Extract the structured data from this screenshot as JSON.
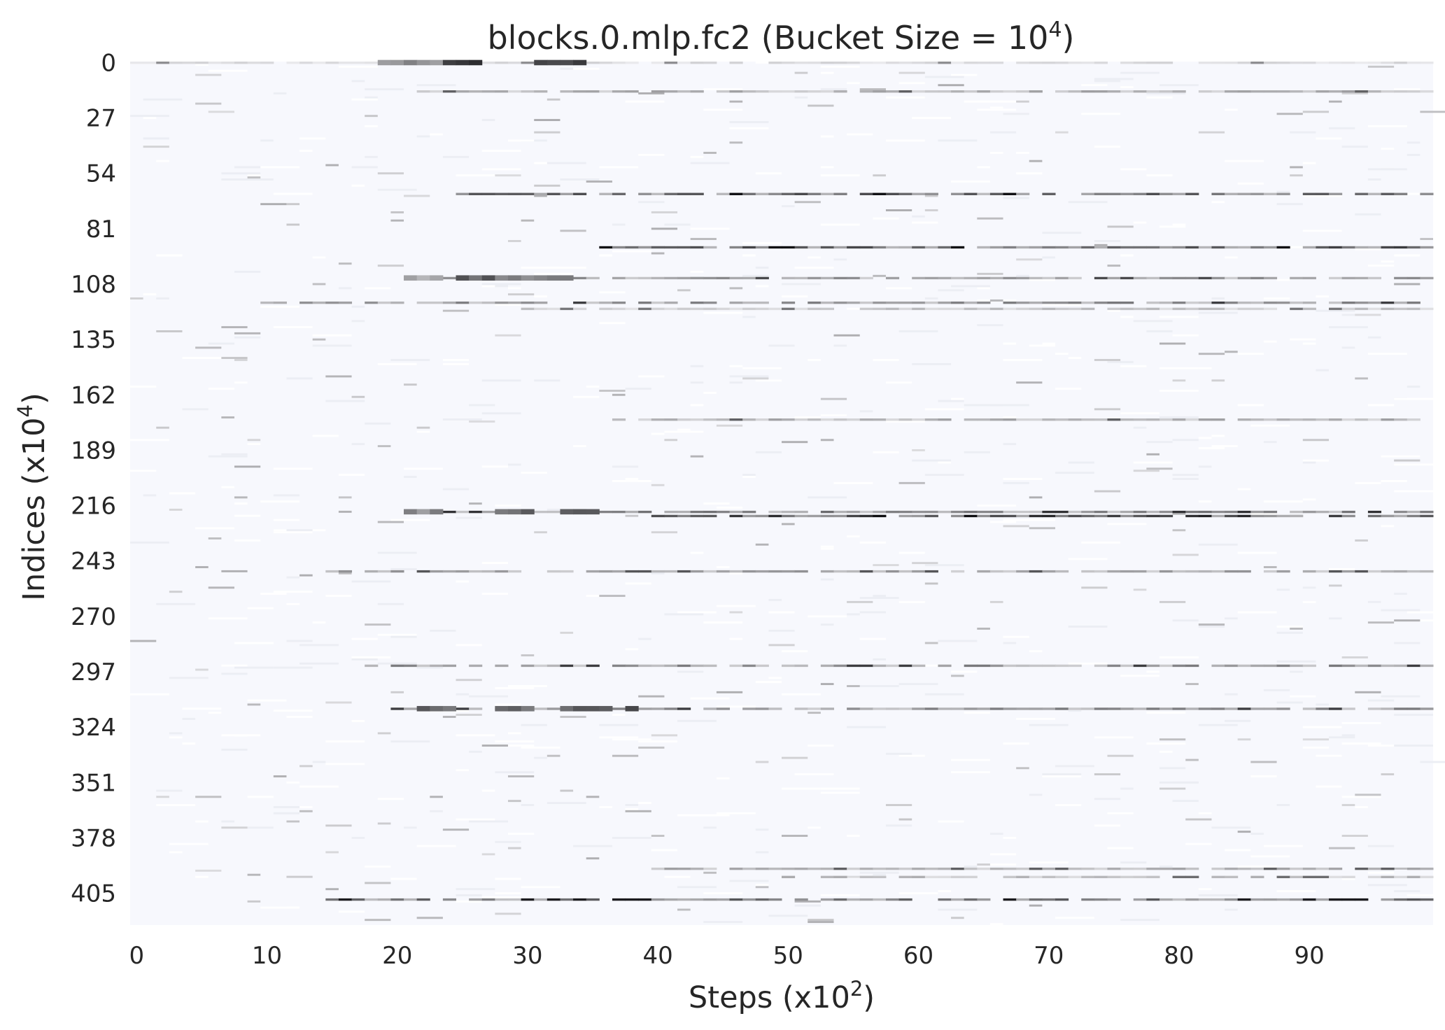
{
  "chart_data": {
    "type": "heatmap",
    "title": "blocks.0.mlp.fc2 (Bucket Size = 10",
    "title_exponent": "4",
    "title_suffix": ")",
    "xlabel": "Steps (x10",
    "xlabel_exponent": "2",
    "xlabel_suffix": ")",
    "ylabel": "Indices (x10",
    "ylabel_exponent": "4",
    "ylabel_suffix": ")",
    "x_ticks": [
      "0",
      "10",
      "20",
      "30",
      "40",
      "50",
      "60",
      "70",
      "80",
      "90"
    ],
    "x_tick_values": [
      0,
      10,
      20,
      30,
      40,
      50,
      60,
      70,
      80,
      90
    ],
    "y_ticks": [
      "0",
      "27",
      "54",
      "81",
      "108",
      "135",
      "162",
      "189",
      "216",
      "243",
      "270",
      "297",
      "324",
      "351",
      "378",
      "405"
    ],
    "y_tick_values": [
      0,
      27,
      54,
      81,
      108,
      135,
      162,
      189,
      216,
      243,
      270,
      297,
      324,
      351,
      378,
      405
    ],
    "xlim": [
      0,
      100
    ],
    "ylim": [
      0,
      421
    ],
    "y_inverted": true,
    "colormap": "white-to-black",
    "background_color": "#f7f8fd",
    "bands": [
      {
        "index": 0,
        "start": 0,
        "end": 100,
        "base": 0.15,
        "early": [
          [
            19,
            24,
            0.5
          ],
          [
            24,
            27,
            0.8
          ],
          [
            31,
            35,
            0.9
          ]
        ]
      },
      {
        "index": 14,
        "start": 22,
        "end": 100,
        "base": 0.35
      },
      {
        "index": 64,
        "start": 25,
        "end": 100,
        "base": 0.7
      },
      {
        "index": 90,
        "start": 36,
        "end": 100,
        "base": 0.75
      },
      {
        "index": 105,
        "start": 21,
        "end": 100,
        "base": 0.45,
        "early": [
          [
            21,
            24,
            0.35
          ],
          [
            25,
            28,
            0.7
          ],
          [
            28,
            32,
            0.5
          ],
          [
            32,
            34,
            0.6
          ]
        ]
      },
      {
        "index": 117,
        "start": 10,
        "end": 100,
        "base": 0.5
      },
      {
        "index": 120,
        "start": 30,
        "end": 100,
        "base": 0.25
      },
      {
        "index": 174,
        "start": 37,
        "end": 100,
        "base": 0.35
      },
      {
        "index": 219,
        "start": 21,
        "end": 100,
        "base": 0.55,
        "early": [
          [
            21,
            24,
            0.5
          ],
          [
            28,
            31,
            0.7
          ],
          [
            33,
            36,
            0.75
          ]
        ]
      },
      {
        "index": 221,
        "start": 40,
        "end": 100,
        "base": 0.85
      },
      {
        "index": 248,
        "start": 15,
        "end": 100,
        "base": 0.4
      },
      {
        "index": 294,
        "start": 18,
        "end": 100,
        "base": 0.5
      },
      {
        "index": 315,
        "start": 20,
        "end": 100,
        "base": 0.5,
        "early": [
          [
            22,
            25,
            0.65
          ],
          [
            28,
            31,
            0.7
          ],
          [
            33,
            37,
            0.7
          ],
          [
            38,
            39,
            0.85
          ]
        ]
      },
      {
        "index": 393,
        "start": 40,
        "end": 100,
        "base": 0.35
      },
      {
        "index": 397,
        "start": 50,
        "end": 100,
        "base": 0.3
      },
      {
        "index": 408,
        "start": 14,
        "end": 100,
        "base": 0.65
      }
    ],
    "grid": false,
    "legend": "none"
  }
}
